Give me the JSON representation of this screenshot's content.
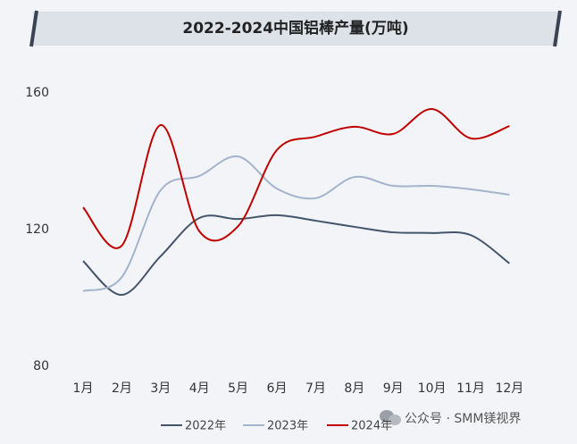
{
  "chart_data": {
    "type": "line",
    "title": "2022-2024中国铝棒产量(万吨)",
    "categories": [
      "1月",
      "2月",
      "3月",
      "4月",
      "5月",
      "6月",
      "7月",
      "8月",
      "9月",
      "10月",
      "11月",
      "12月"
    ],
    "series": [
      {
        "name": "2022年",
        "color": "#44546a",
        "values": [
          110.8,
          100.9,
          112.2,
          123.4,
          123.1,
          124.2,
          122.6,
          120.8,
          119.2,
          119.0,
          118.4,
          110.1
        ]
      },
      {
        "name": "2023年",
        "color": "#a3b4cc",
        "values": [
          102.0,
          106.1,
          131.5,
          135.7,
          141.4,
          132.0,
          129.2,
          135.4,
          132.8,
          132.8,
          131.8,
          130.2
        ]
      },
      {
        "name": "2024年",
        "color": "#c00000",
        "values": [
          126.5,
          115.3,
          150.6,
          119.5,
          121.0,
          143.3,
          147.2,
          150.1,
          148.0,
          155.3,
          146.7,
          150.3
        ]
      }
    ],
    "ylim": [
      80,
      160
    ],
    "yticks": [
      80,
      120,
      160
    ],
    "grid": false,
    "smooth": true,
    "source": "公众号 · SMM镁视界"
  }
}
